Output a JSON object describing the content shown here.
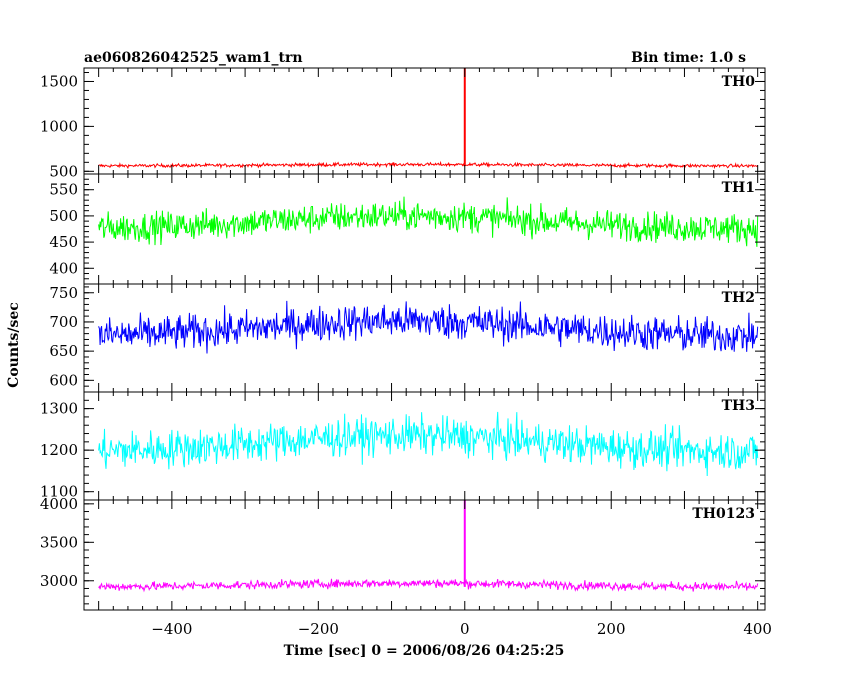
{
  "chart_data": {
    "type": "line",
    "title": "ae060826042525_wam1_trn",
    "bin_time_label": "Bin time: 1.0 s",
    "xlabel": "Time [sec] 0 = 2006/08/26 04:25:25",
    "ylabel": "Counts/sec",
    "xlim": [
      -520,
      410
    ],
    "x_ticks": [
      -400,
      -200,
      0,
      200,
      400
    ],
    "x_tick_labels": [
      "−400",
      "−200",
      "0",
      "200",
      "400"
    ],
    "x_range": [
      -500,
      400
    ],
    "grid": false,
    "panels": [
      {
        "name": "TH0",
        "color": "#ff0000",
        "ylim": [
          470,
          1650
        ],
        "y_ticks": [
          500,
          1000,
          1500
        ],
        "y_tick_labels": [
          "500",
          "1000",
          "1500"
        ],
        "base_level": 560,
        "noise_amplitude": 18,
        "spike": {
          "x": 0,
          "y": 1650
        }
      },
      {
        "name": "TH1",
        "color": "#00ff00",
        "ylim": [
          370,
          580
        ],
        "y_ticks": [
          400,
          450,
          500,
          550
        ],
        "y_tick_labels": [
          "400",
          "450",
          "500",
          "550"
        ],
        "base_level": 475,
        "noise_amplitude": 28
      },
      {
        "name": "TH2",
        "color": "#0000ff",
        "ylim": [
          580,
          765
        ],
        "y_ticks": [
          600,
          650,
          700,
          750
        ],
        "y_tick_labels": [
          "600",
          "650",
          "700",
          "750"
        ],
        "base_level": 675,
        "noise_amplitude": 30
      },
      {
        "name": "TH3",
        "color": "#00ffff",
        "ylim": [
          1080,
          1340
        ],
        "y_ticks": [
          1100,
          1200,
          1300
        ],
        "y_tick_labels": [
          "1100",
          "1200",
          "1300"
        ],
        "base_level": 1195,
        "noise_amplitude": 45
      },
      {
        "name": "TH0123",
        "color": "#ff00ff",
        "ylim": [
          2620,
          4050
        ],
        "y_ticks": [
          3000,
          3500,
          4000
        ],
        "y_tick_labels": [
          "3000",
          "3500",
          "4000"
        ],
        "base_level": 2920,
        "noise_amplitude": 55,
        "spike": {
          "x": 0,
          "y": 4050
        }
      }
    ]
  }
}
